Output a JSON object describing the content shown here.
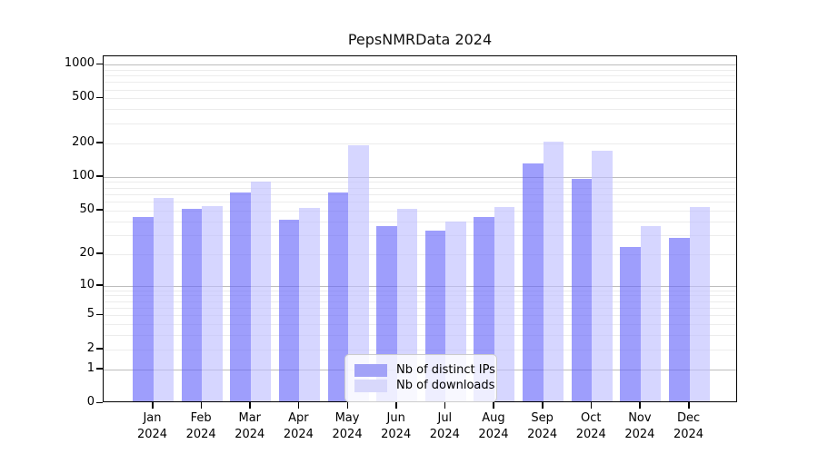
{
  "title": "PepsNMRData 2024",
  "colors": {
    "series_fills": [
      "rgba(99,99,250,0.62)",
      "rgba(189,189,255,0.62)"
    ],
    "legend_swatches": [
      "#a2a2f7",
      "#d8d8fb"
    ],
    "grid_major": "#bdbdbd",
    "grid_minor": "#ececec",
    "axis": "#000000"
  },
  "chart_data": {
    "type": "bar",
    "title": "PepsNMRData 2024",
    "categories": [
      "Jan",
      "Feb",
      "Mar",
      "Apr",
      "May",
      "Jun",
      "Jul",
      "Aug",
      "Sep",
      "Oct",
      "Nov",
      "Dec"
    ],
    "year": "2024",
    "series": [
      {
        "name": "Nb of distinct IPs",
        "values": [
          44,
          52,
          73,
          41,
          72,
          36,
          33,
          44,
          133,
          96,
          23,
          28
        ]
      },
      {
        "name": "Nb of downloads",
        "values": [
          65,
          55,
          91,
          53,
          193,
          52,
          40,
          54,
          208,
          170,
          36,
          54
        ]
      }
    ],
    "yscale": "log1p",
    "yticks": [
      0,
      1,
      2,
      5,
      10,
      20,
      50,
      100,
      200,
      500,
      1000
    ],
    "grid_major_values": [
      1,
      10,
      100,
      1000
    ],
    "grid_minor_bases": [
      1,
      10,
      100
    ],
    "ylim": [
      0,
      1200
    ],
    "xlabel": "",
    "ylabel": "",
    "grid": "on",
    "legend_position": "bottom-center"
  }
}
